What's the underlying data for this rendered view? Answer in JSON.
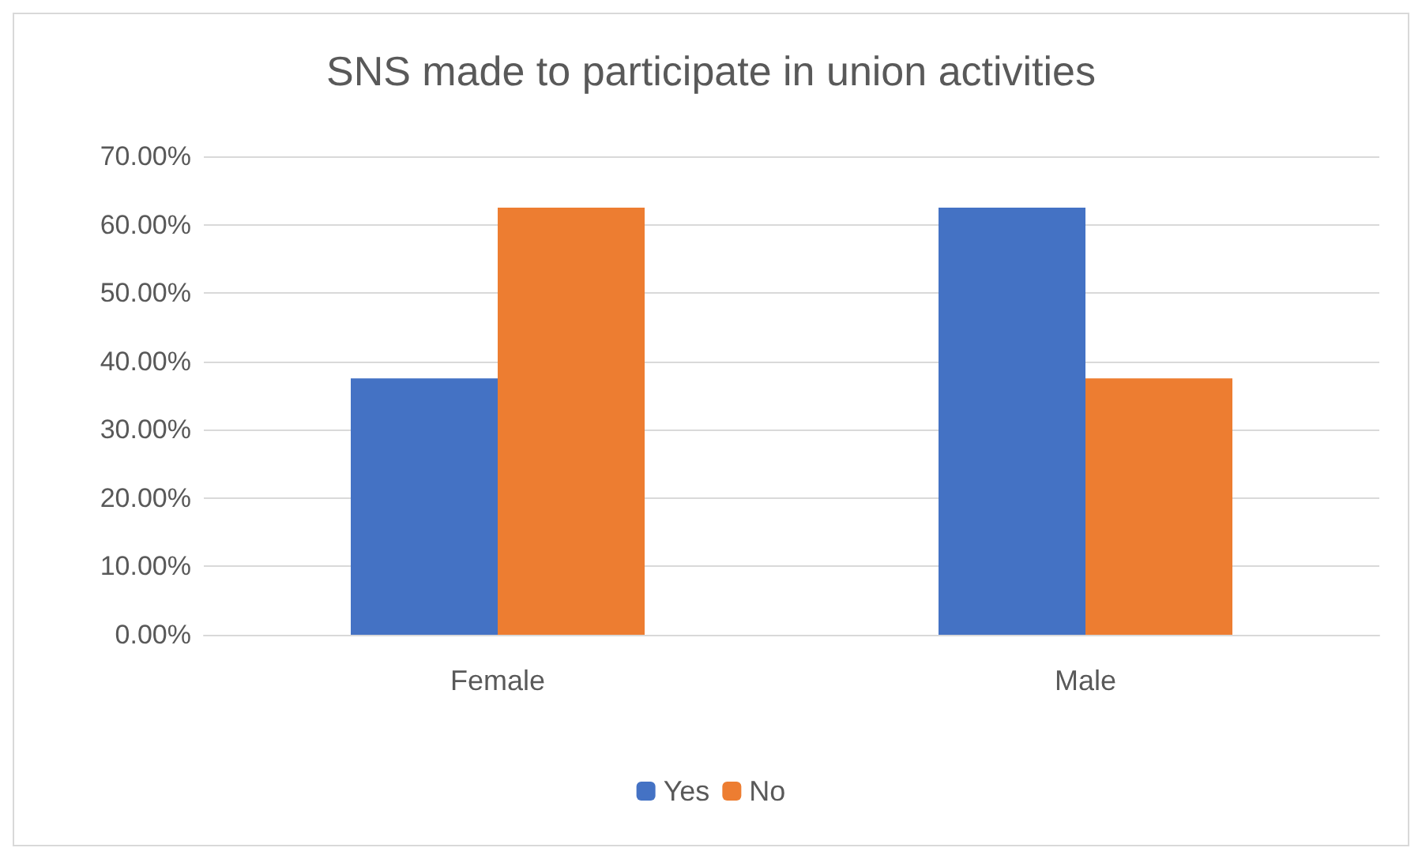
{
  "chart_data": {
    "type": "bar",
    "title": "SNS made to participate in union activities",
    "categories": [
      "Female",
      "Male"
    ],
    "series": [
      {
        "name": "Yes",
        "color": "#4472c4",
        "values": [
          37.5,
          62.5
        ]
      },
      {
        "name": "No",
        "color": "#ed7d31",
        "values": [
          62.5,
          37.5
        ]
      }
    ],
    "ylim": [
      0,
      70
    ],
    "yticks": [
      {
        "value": 0,
        "label": "0.00%"
      },
      {
        "value": 10,
        "label": "10.00%"
      },
      {
        "value": 20,
        "label": "20.00%"
      },
      {
        "value": 30,
        "label": "30.00%"
      },
      {
        "value": 40,
        "label": "40.00%"
      },
      {
        "value": 50,
        "label": "50.00%"
      },
      {
        "value": 60,
        "label": "60.00%"
      },
      {
        "value": 70,
        "label": "70.00%"
      }
    ],
    "grid": "y",
    "legend": "bottom"
  }
}
